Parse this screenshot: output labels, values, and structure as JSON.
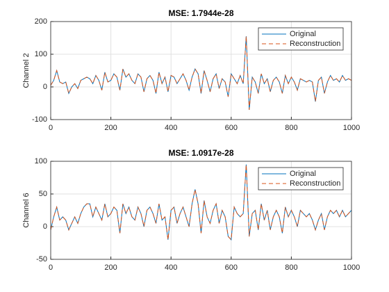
{
  "chart_data": [
    {
      "type": "line",
      "title": "MSE: 1.7944e-28",
      "ylabel": "Channel 2",
      "x": [
        0,
        10,
        20,
        30,
        40,
        50,
        60,
        70,
        80,
        90,
        100,
        110,
        120,
        130,
        140,
        150,
        160,
        170,
        180,
        190,
        200,
        210,
        220,
        230,
        240,
        250,
        260,
        270,
        280,
        290,
        300,
        310,
        320,
        330,
        340,
        350,
        360,
        370,
        380,
        390,
        400,
        410,
        420,
        430,
        440,
        450,
        460,
        470,
        480,
        490,
        500,
        510,
        520,
        530,
        540,
        550,
        560,
        570,
        580,
        590,
        600,
        610,
        620,
        630,
        640,
        650,
        660,
        670,
        680,
        690,
        700,
        710,
        720,
        730,
        740,
        750,
        760,
        770,
        780,
        790,
        800,
        810,
        820,
        830,
        840,
        850,
        860,
        870,
        880,
        890,
        900,
        910,
        920,
        930,
        940,
        950,
        960,
        970,
        980,
        990,
        1000
      ],
      "series": [
        {
          "name": "Original",
          "color": "#0072bd",
          "linestyle": "solid",
          "values": [
            5,
            20,
            50,
            15,
            10,
            15,
            -20,
            0,
            10,
            -5,
            20,
            25,
            30,
            25,
            10,
            35,
            20,
            -10,
            45,
            15,
            20,
            40,
            30,
            -10,
            55,
            30,
            40,
            20,
            10,
            40,
            30,
            -15,
            25,
            35,
            20,
            -20,
            45,
            10,
            30,
            -15,
            35,
            30,
            10,
            25,
            40,
            20,
            -10,
            30,
            55,
            40,
            -20,
            50,
            20,
            -15,
            25,
            40,
            -5,
            25,
            15,
            -30,
            40,
            25,
            10,
            35,
            10,
            155,
            -70,
            30,
            15,
            -20,
            40,
            10,
            25,
            -15,
            20,
            30,
            15,
            -20,
            35,
            10,
            30,
            15,
            -10,
            25,
            20,
            15,
            20,
            15,
            -45,
            20,
            30,
            -20,
            15,
            35,
            20,
            25,
            15,
            35,
            20,
            25,
            20
          ]
        },
        {
          "name": "Reconstruction",
          "color": "#d95319",
          "linestyle": "dashed",
          "values": [
            5,
            20,
            50,
            15,
            10,
            15,
            -20,
            0,
            10,
            -5,
            20,
            25,
            30,
            25,
            10,
            35,
            20,
            -10,
            45,
            15,
            20,
            40,
            30,
            -10,
            55,
            30,
            40,
            20,
            10,
            40,
            30,
            -15,
            25,
            35,
            20,
            -20,
            45,
            10,
            30,
            -15,
            35,
            30,
            10,
            25,
            40,
            20,
            -10,
            30,
            55,
            40,
            -20,
            50,
            20,
            -15,
            25,
            40,
            -5,
            25,
            15,
            -30,
            40,
            25,
            10,
            35,
            10,
            155,
            -70,
            30,
            15,
            -20,
            40,
            10,
            25,
            -15,
            20,
            30,
            15,
            -20,
            35,
            10,
            30,
            15,
            -10,
            25,
            20,
            15,
            20,
            15,
            -45,
            20,
            30,
            -20,
            15,
            35,
            20,
            25,
            15,
            35,
            20,
            25,
            20
          ]
        }
      ],
      "xlim": [
        0,
        1000
      ],
      "xticks": [
        0,
        200,
        400,
        600,
        800,
        1000
      ],
      "ylim": [
        -100,
        200
      ],
      "yticks": [
        -100,
        0,
        100,
        200
      ],
      "grid": true,
      "legend": "upper right"
    },
    {
      "type": "line",
      "title": "MSE: 1.0917e-28",
      "ylabel": "Channel 6",
      "x": [
        0,
        10,
        20,
        30,
        40,
        50,
        60,
        70,
        80,
        90,
        100,
        110,
        120,
        130,
        140,
        150,
        160,
        170,
        180,
        190,
        200,
        210,
        220,
        230,
        240,
        250,
        260,
        270,
        280,
        290,
        300,
        310,
        320,
        330,
        340,
        350,
        360,
        370,
        380,
        390,
        400,
        410,
        420,
        430,
        440,
        450,
        460,
        470,
        480,
        490,
        500,
        510,
        520,
        530,
        540,
        550,
        560,
        570,
        580,
        590,
        600,
        610,
        620,
        630,
        640,
        650,
        660,
        670,
        680,
        690,
        700,
        710,
        720,
        730,
        740,
        750,
        760,
        770,
        780,
        790,
        800,
        810,
        820,
        830,
        840,
        850,
        860,
        870,
        880,
        890,
        900,
        910,
        920,
        930,
        940,
        950,
        960,
        970,
        980,
        990,
        1000
      ],
      "series": [
        {
          "name": "Original",
          "color": "#0072bd",
          "linestyle": "solid",
          "values": [
            -5,
            15,
            30,
            10,
            15,
            10,
            -5,
            5,
            15,
            5,
            20,
            30,
            35,
            35,
            15,
            30,
            20,
            10,
            35,
            15,
            20,
            30,
            25,
            -10,
            35,
            20,
            30,
            15,
            10,
            30,
            20,
            0,
            25,
            30,
            20,
            5,
            35,
            10,
            15,
            -20,
            25,
            30,
            5,
            20,
            30,
            15,
            0,
            35,
            57,
            35,
            -10,
            40,
            15,
            5,
            25,
            35,
            5,
            25,
            15,
            -15,
            -20,
            30,
            20,
            15,
            20,
            95,
            -15,
            20,
            25,
            -5,
            35,
            10,
            25,
            -5,
            15,
            25,
            15,
            -10,
            30,
            15,
            25,
            15,
            0,
            25,
            20,
            15,
            20,
            10,
            -5,
            10,
            20,
            -5,
            15,
            25,
            20,
            25,
            15,
            25,
            15,
            20,
            25
          ]
        },
        {
          "name": "Reconstruction",
          "color": "#d95319",
          "linestyle": "dashed",
          "values": [
            -5,
            15,
            30,
            10,
            15,
            10,
            -5,
            5,
            15,
            5,
            20,
            30,
            35,
            35,
            15,
            30,
            20,
            10,
            35,
            15,
            20,
            30,
            25,
            -10,
            35,
            20,
            30,
            15,
            10,
            30,
            20,
            0,
            25,
            30,
            20,
            5,
            35,
            10,
            15,
            -20,
            25,
            30,
            5,
            20,
            30,
            15,
            0,
            35,
            57,
            35,
            -10,
            40,
            15,
            5,
            25,
            35,
            5,
            25,
            15,
            -15,
            -20,
            30,
            20,
            15,
            20,
            95,
            -15,
            20,
            25,
            -5,
            35,
            10,
            25,
            -5,
            15,
            25,
            15,
            -10,
            30,
            15,
            25,
            15,
            0,
            25,
            20,
            15,
            20,
            10,
            -5,
            10,
            20,
            -5,
            15,
            25,
            20,
            25,
            15,
            25,
            15,
            20,
            25
          ]
        }
      ],
      "xlim": [
        0,
        1000
      ],
      "xticks": [
        0,
        200,
        400,
        600,
        800,
        1000
      ],
      "ylim": [
        -50,
        100
      ],
      "yticks": [
        -50,
        0,
        50,
        100
      ],
      "grid": true,
      "legend": "upper right"
    }
  ]
}
